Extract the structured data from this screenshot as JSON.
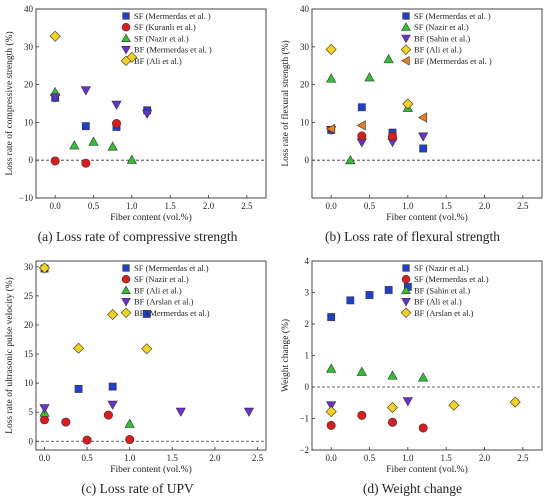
{
  "chart_data": [
    {
      "type": "scatter",
      "caption": "(a) Loss rate of compressive strength",
      "xlabel": "Fiber content (vol.%)",
      "ylabel": "Loss rate of compressive strength (%)",
      "xlim": [
        -0.25,
        2.75
      ],
      "ylim": [
        -10,
        40
      ],
      "xticks": [
        0.0,
        0.5,
        1.0,
        1.5,
        2.0,
        2.5
      ],
      "xtick_labels": [
        "0.0",
        "0.5",
        "1.0",
        "1.5",
        "2.0",
        "2.5"
      ],
      "yticks": [
        -10,
        0,
        10,
        20,
        30,
        40
      ],
      "ytick_labels": [
        "−10",
        "0",
        "10",
        "20",
        "30",
        "40"
      ],
      "zero_line": 0,
      "legend_position": "top-right",
      "series": [
        {
          "name": "SF (Mermerdas et al. )",
          "marker": "square",
          "color": "#1f3fd0",
          "x": [
            0.0,
            0.4,
            0.8,
            1.2
          ],
          "y": [
            16.5,
            9.0,
            8.8,
            13.2
          ]
        },
        {
          "name": "SF (Kuranlı et al.)",
          "marker": "circle",
          "color": "#e01a1a",
          "x": [
            0.0,
            0.4,
            0.8
          ],
          "y": [
            -0.2,
            -0.8,
            9.7
          ]
        },
        {
          "name": "SF (Nazir et al.)",
          "marker": "triangle-up",
          "color": "#2fc22f",
          "x": [
            0.0,
            0.25,
            0.5,
            0.75,
            1.0
          ],
          "y": [
            18.0,
            3.9,
            4.9,
            3.6,
            0.1
          ]
        },
        {
          "name": "BF (Mermerdas et al. )",
          "marker": "triangle-down",
          "color": "#6a2fd6",
          "x": [
            0.0,
            0.4,
            0.8,
            1.2
          ],
          "y": [
            16.6,
            18.5,
            14.7,
            12.3
          ]
        },
        {
          "name": "BF (Ali et al.)",
          "marker": "diamond",
          "color": "#f7d21c",
          "x": [
            0.0,
            1.0
          ],
          "y": [
            32.8,
            27.2
          ]
        }
      ]
    },
    {
      "type": "scatter",
      "caption": "(b) Loss rate of flexural strength",
      "xlabel": "Fiber content (vol.%)",
      "ylabel": "Loss rate of flexural strength (%)",
      "xlim": [
        -0.25,
        2.75
      ],
      "ylim": [
        -10,
        40
      ],
      "xticks": [
        0.0,
        0.5,
        1.0,
        1.5,
        2.0,
        2.5
      ],
      "xtick_labels": [
        "0.0",
        "0.5",
        "1.0",
        "1.5",
        "2.0",
        "2.5"
      ],
      "yticks": [
        0,
        10,
        20,
        30,
        40
      ],
      "ytick_labels": [
        "0",
        "10",
        "20",
        "30",
        "40"
      ],
      "zero_line": 0,
      "legend_position": "top-right",
      "series": [
        {
          "name": "SF (Mermerdas et al. )",
          "marker": "square",
          "color": "#1f3fd0",
          "x": [
            0.0,
            0.4,
            0.8,
            1.2
          ],
          "y": [
            8.0,
            14.0,
            7.3,
            3.1
          ]
        },
        {
          "name": "SF (Nazir et al.)",
          "marker": "triangle-up",
          "color": "#2fc22f",
          "x": [
            0.0,
            0.25,
            0.5,
            0.75,
            1.0
          ],
          "y": [
            21.6,
            0.0,
            21.9,
            26.7,
            13.8
          ]
        },
        {
          "name": "BF (Sahin et al.)",
          "marker": "triangle-down",
          "color": "#6a2fd6",
          "x": [
            0.0,
            0.4,
            0.8,
            1.2
          ],
          "y": [
            8.0,
            4.7,
            4.8,
            6.3
          ]
        },
        {
          "name": "BF (Ali et al.)",
          "marker": "diamond",
          "color": "#f7d21c",
          "x": [
            0.0,
            1.0
          ],
          "y": [
            29.3,
            14.9
          ]
        },
        {
          "name": "BF (Mermerdas et al. )",
          "marker": "triangle-left",
          "color": "#ee7d1c",
          "x": [
            0.0,
            0.4,
            0.8,
            1.2
          ],
          "y": [
            8.3,
            9.2,
            6.3,
            11.3
          ]
        },
        {
          "name": "",
          "marker": "circle",
          "color": "#e01a1a",
          "x": [
            0.4,
            0.8
          ],
          "y": [
            6.4,
            6.3
          ]
        }
      ]
    },
    {
      "type": "scatter",
      "caption": "(c) Loss rate of UPV",
      "xlabel": "Fiber content (vol.%)",
      "ylabel": "Loss rate of ultrasonic pulse velocity (%)",
      "xlim": [
        -0.1,
        2.6
      ],
      "ylim": [
        -1.5,
        31
      ],
      "xticks": [
        0.0,
        0.5,
        1.0,
        1.5,
        2.0,
        2.5
      ],
      "xtick_labels": [
        "0.0",
        "0.5",
        "1.0",
        "1.5",
        "2.0",
        "2.5"
      ],
      "yticks": [
        0,
        5,
        10,
        15,
        20,
        25,
        30
      ],
      "ytick_labels": [
        "0",
        "5",
        "10",
        "15",
        "20",
        "25",
        "30"
      ],
      "zero_line": 0,
      "legend_position": "top-right",
      "series": [
        {
          "name": "SF (Mermerdas et al.)",
          "marker": "square",
          "color": "#1f3fd0",
          "x": [
            0.0,
            0.4,
            0.8,
            1.2
          ],
          "y": [
            29.7,
            9.0,
            9.4,
            21.9
          ]
        },
        {
          "name": "SF (Nazir et al.)",
          "marker": "circle",
          "color": "#e01a1a",
          "x": [
            0.0,
            0.25,
            0.5,
            0.75,
            1.0
          ],
          "y": [
            3.7,
            3.3,
            0.2,
            4.5,
            0.3
          ]
        },
        {
          "name": "BF (Ali et al.)",
          "marker": "triangle-up",
          "color": "#2fc22f",
          "x": [
            0.0,
            1.0
          ],
          "y": [
            4.9,
            3.0
          ]
        },
        {
          "name": "BF (Arslan et al.)",
          "marker": "triangle-down",
          "color": "#6a2fd6",
          "x": [
            0.0,
            0.8,
            1.6,
            2.4
          ],
          "y": [
            5.7,
            6.3,
            5.1,
            5.1
          ]
        },
        {
          "name": "BF (Mermerdas et al.)",
          "marker": "diamond",
          "color": "#f7d21c",
          "x": [
            0.0,
            0.4,
            0.8,
            1.2
          ],
          "y": [
            29.8,
            16.0,
            21.8,
            15.9
          ]
        }
      ]
    },
    {
      "type": "scatter",
      "caption": "(d) Weight change",
      "xlabel": "Fiber content (vol.%)",
      "ylabel": "Weight change (%)",
      "xlim": [
        -0.25,
        2.75
      ],
      "ylim": [
        -2.0,
        4.0
      ],
      "xticks": [
        0.0,
        0.5,
        1.0,
        1.5,
        2.0,
        2.5
      ],
      "xtick_labels": [
        "0.0",
        "0.5",
        "1.0",
        "1.5",
        "2.0",
        "2.5"
      ],
      "yticks": [
        -2,
        -1,
        0,
        1,
        2,
        3,
        4
      ],
      "ytick_labels": [
        "−2",
        "−1",
        "0",
        "1",
        "2",
        "3",
        "4"
      ],
      "zero_line": 0,
      "legend_position": "top-right",
      "series": [
        {
          "name": "SF (Nazir et al.)",
          "marker": "square",
          "color": "#1f3fd0",
          "x": [
            0.0,
            0.25,
            0.5,
            0.75,
            1.0
          ],
          "y": [
            2.22,
            2.75,
            2.92,
            3.08,
            3.18
          ]
        },
        {
          "name": "SF (Mermerdas et al.)",
          "marker": "circle",
          "color": "#e01a1a",
          "x": [
            0.0,
            0.4,
            0.8,
            1.2
          ],
          "y": [
            -1.22,
            -0.9,
            -1.12,
            -1.3
          ]
        },
        {
          "name": "BF (Sahin et al.)",
          "marker": "triangle-up",
          "color": "#2fc22f",
          "x": [
            0.0,
            0.4,
            0.8,
            1.2
          ],
          "y": [
            0.58,
            0.48,
            0.36,
            0.3
          ]
        },
        {
          "name": "BF (Ali et al.)",
          "marker": "triangle-down",
          "color": "#6a2fd6",
          "x": [
            0.0,
            1.0
          ],
          "y": [
            -0.58,
            -0.45
          ]
        },
        {
          "name": "BF (Arslan et al.)",
          "marker": "diamond",
          "color": "#f7d21c",
          "x": [
            0.0,
            0.8,
            1.6,
            2.4
          ],
          "y": [
            -0.78,
            -0.65,
            -0.58,
            -0.48
          ]
        }
      ]
    }
  ]
}
